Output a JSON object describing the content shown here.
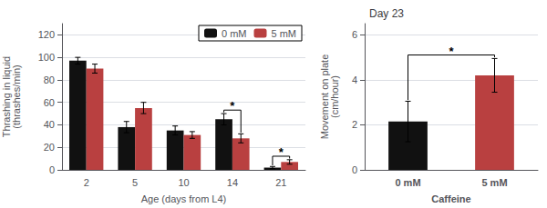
{
  "chart_data": [
    {
      "type": "bar",
      "categories": [
        "2",
        "5",
        "10",
        "14",
        "21"
      ],
      "xlabel": "Age (days from L4)",
      "ylabel": "Thrashing in liquid\n(thrashes/min)",
      "series": [
        {
          "name": "0 mM",
          "color": "#111111",
          "values": [
            97,
            38,
            35,
            45,
            2
          ],
          "errors": [
            3,
            5,
            4,
            5,
            1
          ]
        },
        {
          "name": "5 mM",
          "color": "#b94040",
          "values": [
            90,
            55,
            31,
            28,
            7
          ],
          "errors": [
            4,
            5,
            3,
            4,
            2
          ]
        }
      ],
      "ylim": [
        0,
        130
      ],
      "yticks": [
        0,
        20,
        40,
        60,
        80,
        100,
        120
      ],
      "grid": true,
      "legend": "upper right",
      "annotations": [
        {
          "text": "*",
          "category": "14"
        },
        {
          "text": "*",
          "category": "21"
        }
      ]
    },
    {
      "type": "bar",
      "title": "Day 23",
      "categories": [
        "0 mM",
        "5 mM"
      ],
      "xlabel": "Caffeine",
      "ylabel": "Movement on plate\n(cm/hour)",
      "values": [
        2.15,
        4.2
      ],
      "errors": [
        0.9,
        0.75
      ],
      "colors": [
        "#111111",
        "#b94040"
      ],
      "ylim": [
        0,
        6.5
      ],
      "yticks": [
        0,
        2,
        4,
        6
      ],
      "grid": true,
      "annotations": [
        {
          "text": "*",
          "categories": [
            "0 mM",
            "5 mM"
          ]
        }
      ]
    }
  ]
}
